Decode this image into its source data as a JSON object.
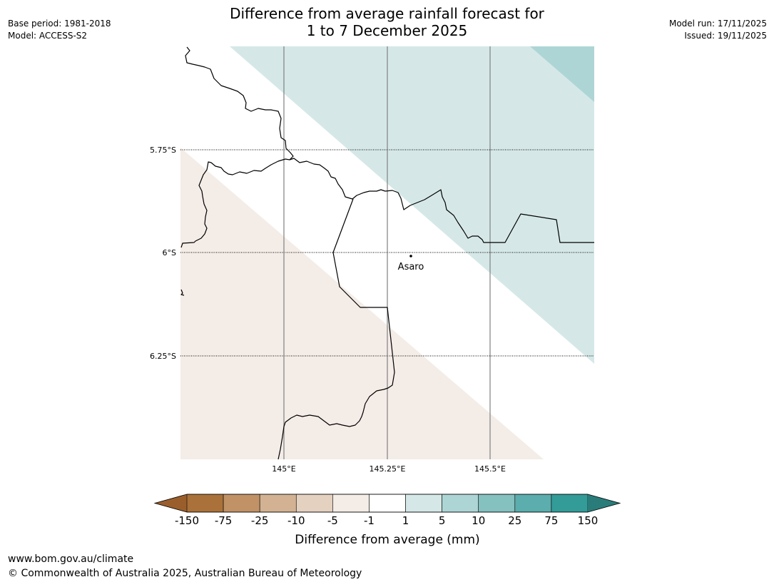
{
  "title": {
    "line1": "Difference from average rainfall forecast for",
    "line2": "1 to 7 December 2025"
  },
  "meta": {
    "base_period": "Base period: 1981-2018",
    "model": "Model: ACCESS-S2",
    "model_run": "Model run: 17/11/2025",
    "issued": "Issued: 19/11/2025"
  },
  "map": {
    "lat_labels": [
      "5.75°S",
      "6°S",
      "6.25°S"
    ],
    "lon_labels": [
      "145°E",
      "145.25°E",
      "145.5°E"
    ],
    "place": "Asaro"
  },
  "legend": {
    "ticks": [
      "-150",
      "-75",
      "-25",
      "-10",
      "-5",
      "-1",
      "1",
      "5",
      "10",
      "25",
      "75",
      "150"
    ],
    "colors": [
      "#ab713a",
      "#c09266",
      "#d2b293",
      "#e4d1c0",
      "#f4ece7",
      "#ffffff",
      "#d5e8e7",
      "#aed5d5",
      "#84c1bf",
      "#5cadad",
      "#339b98"
    ],
    "low_extend_color": "#9a5e2c",
    "high_extend_color": "#297c79",
    "label": "Difference from average (mm)"
  },
  "footer": {
    "url": "www.bom.gov.au/climate",
    "copyright": "© Commonwealth of Australia 2025, Australian Bureau of Meteorology"
  }
}
